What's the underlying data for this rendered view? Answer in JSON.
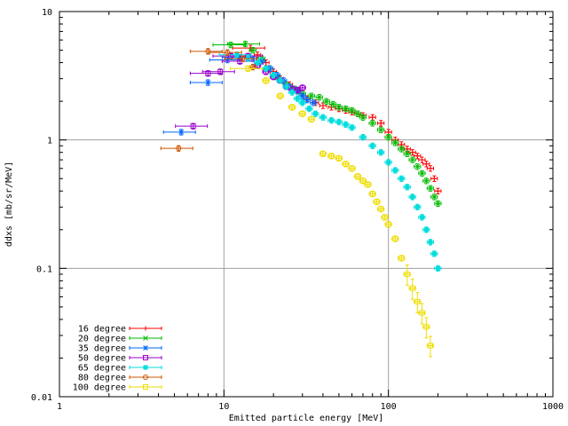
{
  "chart_data": {
    "type": "scatter",
    "title": "",
    "xlabel": "Emitted particle energy [MeV]",
    "ylabel": "ddxs [mb/sr/MeV]",
    "xscale": "log",
    "yscale": "log",
    "xlim": [
      1,
      1000
    ],
    "ylim": [
      0.01,
      10
    ],
    "xticks": [
      "1",
      "10",
      "100",
      "1000"
    ],
    "yticks": [
      "0.01",
      "0.1",
      "1",
      "10"
    ],
    "grid": true,
    "legend_position": "bottom-left",
    "series": [
      {
        "name": "16 degree",
        "color": "#ff0000",
        "x": [
          14.5,
          16,
          18,
          20,
          22,
          25,
          28,
          32,
          36,
          40,
          45,
          50,
          55,
          60,
          65,
          70,
          80,
          90,
          100,
          110,
          120,
          130,
          140,
          150,
          160,
          170,
          180,
          190,
          200
        ],
        "y": [
          5.2,
          4.6,
          4.0,
          3.4,
          3.0,
          2.7,
          2.4,
          2.1,
          1.95,
          1.85,
          1.8,
          1.75,
          1.7,
          1.65,
          1.6,
          1.55,
          1.5,
          1.35,
          1.15,
          1.0,
          0.92,
          0.85,
          0.8,
          0.75,
          0.7,
          0.65,
          0.6,
          0.5,
          0.4
        ]
      },
      {
        "name": "20 degree",
        "color": "#00bb00",
        "x": [
          11,
          13.5,
          15,
          17,
          19,
          21,
          24,
          27,
          30,
          34,
          38,
          42,
          46,
          50,
          55,
          60,
          65,
          70,
          80,
          90,
          100,
          110,
          120,
          130,
          140,
          150,
          160,
          170,
          180,
          190,
          200
        ],
        "y": [
          5.5,
          5.6,
          5.0,
          4.3,
          3.6,
          3.1,
          2.7,
          2.5,
          2.3,
          2.2,
          2.15,
          2.0,
          1.9,
          1.8,
          1.75,
          1.7,
          1.6,
          1.5,
          1.35,
          1.2,
          1.05,
          0.95,
          0.85,
          0.78,
          0.7,
          0.62,
          0.55,
          0.48,
          0.42,
          0.36,
          0.32
        ]
      },
      {
        "name": "35 degree",
        "color": "#0066ff",
        "x": [
          5.5,
          8,
          10.5,
          12.5,
          15,
          17,
          19,
          21,
          23,
          25,
          28,
          30,
          32,
          35
        ],
        "y": [
          1.15,
          2.8,
          4.2,
          4.4,
          4.3,
          4.1,
          3.6,
          3.2,
          2.9,
          2.6,
          2.4,
          2.2,
          2.05,
          1.95
        ]
      },
      {
        "name": "50 degree",
        "color": "#9900cc",
        "x": [
          6.5,
          8,
          9.5,
          11,
          12.5,
          14,
          16,
          18,
          20,
          22,
          24,
          26,
          28,
          30
        ],
        "y": [
          1.28,
          3.3,
          3.4,
          4.5,
          4.1,
          4.5,
          3.8,
          3.4,
          3.1,
          2.9,
          2.6,
          2.5,
          2.45,
          2.55
        ]
      },
      {
        "name": "65 degree",
        "color": "#00dddd",
        "x": [
          12,
          14,
          16,
          18,
          20,
          22,
          24,
          26,
          28,
          30,
          33,
          36,
          40,
          45,
          50,
          55,
          60,
          70,
          80,
          90,
          100,
          110,
          120,
          130,
          140,
          150,
          160,
          170,
          180,
          190,
          200
        ],
        "y": [
          4.6,
          4.3,
          4.0,
          3.6,
          3.2,
          2.9,
          2.6,
          2.35,
          2.1,
          1.95,
          1.75,
          1.6,
          1.5,
          1.42,
          1.38,
          1.32,
          1.25,
          1.05,
          0.9,
          0.8,
          0.67,
          0.58,
          0.5,
          0.43,
          0.36,
          0.3,
          0.25,
          0.2,
          0.16,
          0.13,
          0.1
        ]
      },
      {
        "name": "80 degree",
        "color": "#cc5500",
        "x": [
          5.3,
          8,
          10.5,
          13,
          15
        ],
        "y": [
          0.86,
          4.9,
          4.8,
          4.3,
          3.7
        ]
      },
      {
        "name": "100 degree",
        "color": "#eedd00",
        "x": [
          14,
          18,
          22,
          26,
          30,
          34,
          40,
          45,
          50,
          55,
          60,
          65,
          70,
          75,
          80,
          85,
          90,
          95,
          100,
          110,
          120,
          130,
          140,
          150,
          160,
          170,
          180
        ],
        "y": [
          3.6,
          2.9,
          2.2,
          1.8,
          1.6,
          1.45,
          0.78,
          0.75,
          0.72,
          0.65,
          0.6,
          0.52,
          0.48,
          0.45,
          0.38,
          0.33,
          0.29,
          0.25,
          0.22,
          0.17,
          0.12,
          0.09,
          0.07,
          0.055,
          0.045,
          0.035,
          0.025
        ]
      }
    ]
  }
}
